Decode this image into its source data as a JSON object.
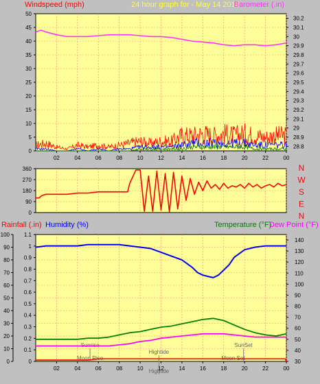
{
  "title": "24 hour graph for - May 14 2018",
  "colors": {
    "background": "#c0c0c0",
    "plot_bg": "#ffff99",
    "grid": "#ff8080",
    "axis": "#000000",
    "wind": "#ff0000",
    "gust": "#0000ff",
    "avg": "#008000",
    "baro": "#ff33ff",
    "humidity": "#0000ff",
    "temperature": "#008000",
    "dewpoint": "#ff00ff",
    "rain": "#ff0000",
    "astro": "#808080",
    "title": "#ffff33"
  },
  "x_ticks": [
    "02",
    "04",
    "06",
    "08",
    "10",
    "12",
    "14",
    "16",
    "18",
    "20",
    "22",
    "00"
  ],
  "chart_data": [
    {
      "type": "line",
      "id": "wind-baro",
      "xlabel": "",
      "ylabel_left": "Windspeed (mph)",
      "ylabel_right": "Barometer (.in)",
      "left_ticks": [
        "0",
        "5",
        "10",
        "15",
        "20",
        "25",
        "30",
        "35",
        "40",
        "45",
        "50"
      ],
      "right_ticks": [
        "28.8",
        "28.9",
        "29",
        "29.1",
        "29.2",
        "29.3",
        "29.4",
        "29.5",
        "29.6",
        "29.7",
        "29.8",
        "29.9",
        "30",
        "30.1",
        "30.2"
      ],
      "ylim_left": [
        0,
        50
      ],
      "ylim_right": [
        28.75,
        30.25
      ],
      "series": [
        {
          "name": "Barometer (.in)",
          "axis": "right",
          "x": [
            0,
            0.5,
            1,
            2,
            3,
            4,
            5,
            6,
            7,
            8,
            9,
            10,
            11,
            12,
            13,
            14,
            15,
            16,
            17,
            18,
            19,
            20,
            21,
            22,
            23,
            24
          ],
          "y": [
            30.05,
            30.07,
            30.05,
            30.02,
            30.0,
            30.0,
            30.0,
            30.01,
            30.02,
            30.02,
            30.02,
            30.01,
            30.0,
            30.0,
            29.99,
            29.97,
            29.95,
            29.94,
            29.93,
            29.91,
            29.9,
            29.91,
            29.91,
            29.9,
            29.91,
            29.93
          ]
        },
        {
          "key": "wind_gust",
          "axis": "left",
          "x": [
            0,
            1,
            2,
            3,
            4,
            5,
            6,
            7,
            8,
            9,
            10,
            11,
            12,
            13,
            14,
            15,
            16,
            17,
            18,
            19,
            20,
            21,
            22,
            23,
            24
          ],
          "y": [
            3,
            4,
            2,
            1,
            3,
            2,
            3,
            2,
            3,
            4,
            5,
            4,
            5,
            5,
            8,
            8,
            9,
            8,
            9,
            8,
            9,
            8,
            7,
            8,
            8
          ]
        },
        {
          "key": "wind_avg",
          "axis": "left",
          "x": [
            0,
            1,
            2,
            3,
            4,
            5,
            6,
            7,
            8,
            9,
            10,
            11,
            12,
            13,
            14,
            15,
            16,
            17,
            18,
            19,
            20,
            21,
            22,
            23,
            24
          ],
          "y": [
            1,
            1,
            0,
            0,
            1,
            0,
            1,
            0,
            1,
            1,
            2,
            2,
            2,
            2,
            3,
            4,
            4,
            4,
            4,
            4,
            4,
            3,
            3,
            3,
            3
          ]
        },
        {
          "key": "wind_low",
          "axis": "left",
          "x": [
            0,
            1,
            2,
            3,
            4,
            5,
            6,
            7,
            8,
            9,
            10,
            11,
            12,
            13,
            14,
            15,
            16,
            17,
            18,
            19,
            20,
            21,
            22,
            23,
            24
          ],
          "y": [
            0,
            0,
            0,
            0,
            0,
            0,
            0,
            0,
            0,
            0,
            1,
            1,
            1,
            1,
            1,
            2,
            2,
            2,
            2,
            2,
            2,
            1,
            1,
            1,
            1
          ]
        }
      ]
    },
    {
      "type": "line",
      "id": "direction",
      "left_ticks": [
        "0",
        "90",
        "180",
        "270",
        "360"
      ],
      "right_labels": [
        "N",
        "W",
        "S",
        "E",
        "N"
      ],
      "ylim": [
        0,
        360
      ],
      "series": [
        {
          "key": "wind_direction",
          "x": [
            0,
            0.3,
            0.6,
            1,
            2,
            3,
            4,
            5,
            6,
            7,
            8,
            8.8,
            9,
            9.6,
            10,
            10.4,
            10.8,
            11.2,
            11.6,
            12,
            12.4,
            12.8,
            13.2,
            13.6,
            14,
            14.4,
            14.8,
            15.2,
            15.6,
            16,
            16.4,
            16.8,
            17.2,
            17.6,
            18,
            18.4,
            18.8,
            19.2,
            19.6,
            20,
            20.4,
            20.8,
            21.2,
            21.6,
            22,
            22.4,
            22.8,
            23.2,
            23.6,
            24
          ],
          "y": [
            120,
            120,
            140,
            150,
            150,
            150,
            160,
            160,
            170,
            170,
            170,
            170,
            240,
            350,
            350,
            10,
            300,
            10,
            340,
            20,
            320,
            5,
            330,
            30,
            300,
            100,
            280,
            150,
            250,
            180,
            260,
            200,
            230,
            190,
            240,
            200,
            220,
            210,
            230,
            200,
            240,
            210,
            230,
            200,
            220,
            230,
            210,
            240,
            220,
            230
          ]
        }
      ]
    },
    {
      "type": "line",
      "id": "temp-hum-rain",
      "ylabel_rain": "Rainfall (.in)",
      "ylabel_humidity": "Humidity (%)",
      "ylabel_temp": "Temperature (°F)",
      "ylabel_dew": "Dew Point (°F)",
      "left_ticks": [
        "0",
        "10",
        "20",
        "30",
        "40",
        "50",
        "60",
        "70",
        "80",
        "90",
        "100"
      ],
      "humidity_ticks": [
        "0",
        "0.1",
        "0.2",
        "0.3",
        "0.4",
        "0.5",
        "0.6",
        "0.7",
        "0.8",
        "0.9",
        "1",
        "1.1"
      ],
      "right_ticks": [
        "30",
        "40",
        "50",
        "60",
        "70",
        "80",
        "90",
        "100",
        "110",
        "120",
        "130",
        "140"
      ],
      "ylim_left": [
        0,
        100
      ],
      "ylim_right": [
        30,
        145
      ],
      "series": [
        {
          "key": "humidity",
          "axis": "left",
          "x": [
            0,
            1,
            2,
            3,
            4,
            5,
            6,
            7,
            8,
            9,
            10,
            11,
            12,
            13,
            14,
            15,
            15.5,
            16,
            16.5,
            17,
            17.5,
            18,
            18.5,
            19,
            20,
            21,
            22,
            23,
            24
          ],
          "y": [
            90,
            91,
            91,
            91,
            91,
            92,
            92,
            92,
            92,
            91,
            90,
            89,
            86,
            83,
            80,
            74,
            70,
            68,
            67,
            66,
            68,
            72,
            76,
            82,
            88,
            90,
            91,
            91,
            91
          ]
        },
        {
          "key": "temperature",
          "axis": "right",
          "x": [
            0,
            1,
            2,
            3,
            4,
            5,
            6,
            7,
            8,
            9,
            10,
            11,
            12,
            13,
            14,
            15,
            16,
            17,
            18,
            19,
            20,
            21,
            22,
            23,
            24
          ],
          "y": [
            50,
            50,
            50,
            50,
            50,
            51,
            51,
            52,
            54,
            56,
            57,
            59,
            61,
            62,
            64,
            66,
            68,
            69,
            67,
            63,
            59,
            56,
            54,
            53,
            55
          ]
        },
        {
          "key": "dew_point",
          "axis": "right",
          "x": [
            0,
            1,
            2,
            3,
            4,
            5,
            6,
            7,
            8,
            9,
            10,
            11,
            12,
            13,
            14,
            15,
            16,
            17,
            18,
            19,
            20,
            21,
            22,
            23,
            24
          ],
          "y": [
            44,
            44,
            44,
            44,
            44,
            44,
            44,
            44,
            45,
            46,
            48,
            49,
            51,
            52,
            53,
            54,
            55,
            55,
            55,
            54,
            53,
            52,
            52,
            52,
            52
          ]
        },
        {
          "key": "rainfall",
          "axis": "left",
          "x": [
            0,
            5,
            6,
            7,
            8,
            9,
            10,
            11,
            12,
            13,
            14,
            15,
            16,
            17,
            18,
            19,
            20,
            21,
            22,
            23,
            23.9,
            24
          ],
          "y": [
            1,
            1,
            2,
            2,
            2,
            2,
            2,
            2,
            2,
            2,
            2,
            2,
            2,
            2,
            2,
            2,
            2,
            2,
            2,
            2,
            2,
            0
          ]
        }
      ],
      "annotations": [
        {
          "label": "Sunrise",
          "x": 5.2
        },
        {
          "label": "Moon Rise",
          "x": 5.2
        },
        {
          "label": "Hightide",
          "x": 11.8
        },
        {
          "label": "Hightide",
          "x": 11.8
        },
        {
          "label": "Moon Set",
          "x": 18.9
        },
        {
          "label": "SunSet",
          "x": 19.9
        }
      ]
    }
  ]
}
